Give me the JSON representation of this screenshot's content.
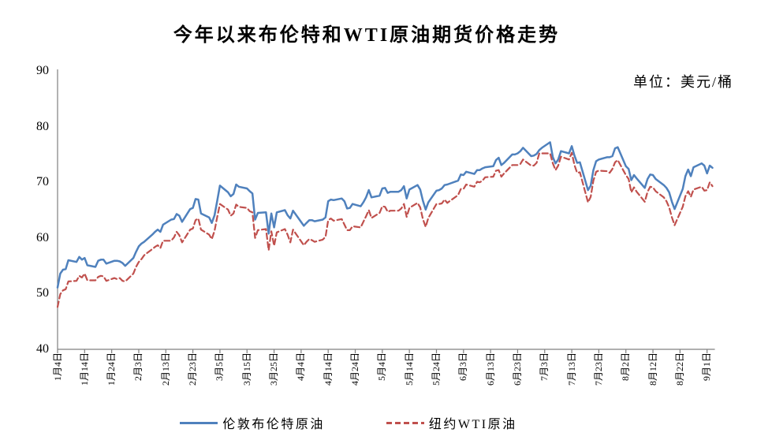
{
  "colors": {
    "brent": "#4F81BD",
    "wti": "#C0504D",
    "axis": "#808080",
    "text": "#000000",
    "background": "#FFFFFF"
  },
  "chart_data": {
    "type": "line",
    "title": "今年以来布伦特和WTI原油期货价格走势",
    "unit_label": "单位：美元/桶",
    "ylabel": "美元/桶",
    "ylim": [
      40,
      90
    ],
    "yticks": [
      40,
      50,
      60,
      70,
      80,
      90
    ],
    "grid": false,
    "legend_position": "bottom",
    "x_tick_labels": [
      "1月4日",
      "1月14日",
      "1月24日",
      "2月3日",
      "2月13日",
      "2月23日",
      "3月5日",
      "3月15日",
      "3月25日",
      "4月4日",
      "4月14日",
      "4月24日",
      "5月4日",
      "5月14日",
      "5月24日",
      "6月3日",
      "6月13日",
      "6月23日",
      "7月3日",
      "7月13日",
      "7月23日",
      "8月2日",
      "8月12日",
      "8月22日",
      "9月1日"
    ],
    "x_tick_day_offsets": [
      0,
      10,
      20,
      30,
      40,
      50,
      60,
      70,
      80,
      90,
      100,
      110,
      120,
      130,
      140,
      150,
      160,
      170,
      180,
      190,
      200,
      210,
      220,
      230,
      240
    ],
    "x_day_range": [
      0,
      242
    ],
    "days": [
      0,
      1,
      2,
      3,
      4,
      7,
      8,
      9,
      10,
      11,
      14,
      15,
      16,
      17,
      18,
      21,
      22,
      23,
      24,
      25,
      28,
      29,
      30,
      31,
      32,
      35,
      36,
      37,
      38,
      39,
      42,
      43,
      44,
      45,
      46,
      49,
      50,
      51,
      52,
      53,
      56,
      57,
      58,
      59,
      60,
      63,
      64,
      65,
      66,
      67,
      70,
      71,
      72,
      73,
      74,
      77,
      78,
      79,
      80,
      81,
      84,
      85,
      86,
      87,
      91,
      92,
      93,
      94,
      95,
      98,
      99,
      100,
      101,
      102,
      105,
      106,
      107,
      108,
      109,
      112,
      113,
      114,
      115,
      116,
      119,
      120,
      121,
      122,
      123,
      126,
      127,
      128,
      129,
      130,
      133,
      134,
      135,
      136,
      137,
      140,
      141,
      142,
      143,
      144,
      148,
      149,
      150,
      151,
      154,
      155,
      156,
      157,
      158,
      161,
      162,
      163,
      164,
      165,
      168,
      169,
      170,
      171,
      172,
      175,
      176,
      177,
      178,
      179,
      182,
      183,
      184,
      185,
      186,
      189,
      190,
      191,
      192,
      193,
      196,
      197,
      198,
      199,
      200,
      203,
      204,
      205,
      206,
      207,
      210,
      211,
      212,
      213,
      214,
      217,
      218,
      219,
      220,
      221,
      224,
      225,
      226,
      227,
      228,
      231,
      232,
      233,
      234,
      235,
      238,
      239,
      240,
      241,
      242
    ],
    "series": [
      {
        "name": "伦敦布伦特原油",
        "color": "#4F81BD",
        "line_style": "solid",
        "values": [
          51.1,
          53.6,
          54.3,
          54.4,
          56.0,
          55.7,
          56.6,
          56.1,
          56.4,
          55.1,
          54.8,
          55.9,
          56.1,
          56.1,
          55.4,
          55.9,
          55.9,
          55.8,
          55.5,
          55.0,
          56.4,
          57.5,
          58.5,
          59.0,
          59.3,
          60.6,
          61.1,
          61.5,
          61.1,
          62.4,
          63.3,
          63.4,
          64.3,
          64.0,
          62.9,
          65.2,
          65.4,
          67.0,
          66.9,
          64.4,
          63.7,
          62.7,
          64.1,
          66.7,
          69.4,
          68.2,
          67.5,
          67.9,
          69.6,
          69.2,
          68.9,
          68.4,
          68.0,
          63.3,
          64.5,
          64.6,
          60.8,
          64.4,
          61.9,
          64.6,
          65.0,
          64.1,
          63.5,
          64.9,
          62.2,
          62.7,
          63.2,
          63.2,
          63.0,
          63.3,
          63.7,
          66.6,
          66.9,
          66.8,
          67.1,
          66.6,
          65.3,
          65.4,
          66.1,
          65.7,
          66.4,
          67.3,
          68.6,
          67.3,
          67.6,
          68.9,
          69.0,
          68.1,
          68.3,
          68.3,
          68.6,
          69.3,
          67.1,
          68.7,
          69.5,
          68.7,
          66.7,
          65.1,
          66.4,
          68.5,
          68.6,
          68.9,
          69.5,
          69.6,
          70.3,
          71.4,
          71.3,
          71.9,
          71.5,
          72.2,
          72.2,
          72.5,
          72.7,
          72.9,
          74.0,
          74.4,
          73.1,
          73.5,
          75.0,
          75.0,
          75.2,
          75.6,
          76.2,
          74.7,
          74.8,
          75.1,
          75.8,
          76.2,
          77.2,
          74.5,
          73.4,
          74.1,
          75.6,
          75.2,
          76.5,
          74.8,
          73.5,
          73.6,
          68.6,
          69.4,
          72.2,
          73.8,
          74.1,
          74.5,
          74.5,
          74.7,
          76.1,
          76.3,
          72.9,
          72.4,
          70.4,
          71.3,
          70.7,
          69.0,
          70.6,
          71.4,
          71.3,
          70.6,
          69.5,
          69.0,
          68.2,
          66.5,
          65.2,
          68.8,
          71.1,
          72.3,
          71.1,
          72.7,
          73.4,
          73.0,
          71.6,
          73.0,
          72.6
        ]
      },
      {
        "name": "纽约WTI原油",
        "color": "#C0504D",
        "line_style": "dashed",
        "values": [
          47.6,
          49.9,
          50.6,
          50.8,
          52.2,
          52.3,
          53.2,
          52.9,
          53.6,
          52.4,
          52.4,
          53.0,
          53.2,
          53.1,
          52.3,
          52.8,
          52.6,
          52.8,
          52.3,
          52.2,
          53.6,
          54.8,
          55.7,
          56.2,
          56.9,
          58.0,
          58.4,
          58.7,
          58.2,
          59.5,
          59.5,
          60.1,
          61.1,
          60.5,
          59.2,
          61.5,
          61.7,
          63.2,
          63.5,
          61.5,
          60.6,
          59.8,
          61.3,
          63.8,
          66.1,
          65.1,
          64.0,
          64.4,
          66.0,
          65.6,
          65.4,
          64.8,
          64.6,
          60.0,
          61.4,
          61.6,
          57.8,
          61.2,
          58.6,
          61.0,
          61.6,
          60.6,
          59.2,
          61.5,
          58.7,
          59.3,
          59.8,
          59.6,
          59.3,
          59.7,
          60.2,
          63.2,
          63.5,
          63.1,
          63.4,
          62.4,
          61.4,
          61.4,
          62.1,
          61.9,
          62.9,
          63.9,
          65.0,
          63.6,
          64.5,
          65.7,
          65.6,
          64.7,
          64.9,
          64.9,
          65.3,
          66.1,
          63.8,
          65.4,
          66.3,
          65.5,
          63.4,
          62.0,
          63.6,
          66.1,
          66.1,
          66.2,
          66.9,
          66.3,
          67.7,
          68.8,
          68.8,
          69.6,
          69.2,
          70.1,
          70.0,
          70.3,
          70.9,
          71.0,
          72.1,
          72.2,
          71.0,
          71.6,
          73.1,
          73.1,
          73.1,
          73.3,
          74.1,
          73.0,
          73.0,
          73.5,
          75.2,
          75.2,
          75.2,
          73.4,
          72.2,
          73.0,
          74.6,
          74.1,
          75.3,
          73.1,
          71.7,
          71.8,
          66.4,
          67.4,
          70.3,
          71.9,
          72.1,
          72.0,
          71.7,
          72.4,
          73.6,
          74.0,
          71.3,
          70.6,
          68.2,
          69.1,
          68.3,
          66.5,
          68.3,
          69.2,
          69.1,
          68.4,
          67.3,
          66.6,
          65.5,
          63.7,
          62.3,
          65.6,
          67.5,
          68.4,
          67.4,
          68.7,
          69.2,
          68.5,
          68.6,
          70.0,
          69.3
        ]
      }
    ]
  }
}
